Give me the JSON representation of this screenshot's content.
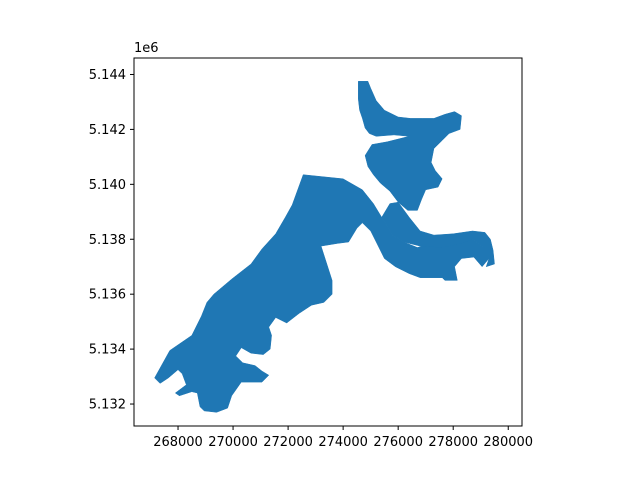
{
  "chart_data": {
    "type": "map",
    "y_offset_label": "1e6",
    "x_ticks": [
      {
        "value": 268000,
        "label": "268000"
      },
      {
        "value": 270000,
        "label": "270000"
      },
      {
        "value": 272000,
        "label": "272000"
      },
      {
        "value": 274000,
        "label": "274000"
      },
      {
        "value": 276000,
        "label": "276000"
      },
      {
        "value": 278000,
        "label": "278000"
      },
      {
        "value": 280000,
        "label": "280000"
      }
    ],
    "y_ticks": [
      {
        "value": 5132000,
        "label": "5.132"
      },
      {
        "value": 5134000,
        "label": "5.134"
      },
      {
        "value": 5136000,
        "label": "5.136"
      },
      {
        "value": 5138000,
        "label": "5.138"
      },
      {
        "value": 5140000,
        "label": "5.140"
      },
      {
        "value": 5142000,
        "label": "5.142"
      },
      {
        "value": 5144000,
        "label": "5.144"
      }
    ],
    "xlim": [
      266400,
      280500
    ],
    "ylim": [
      5131200,
      5144600
    ],
    "fill_color": "#1f77b4",
    "grid": false,
    "polygon": [
      [
        272550,
        5140350
      ],
      [
        274000,
        5140200
      ],
      [
        274700,
        5139800
      ],
      [
        275100,
        5139300
      ],
      [
        275400,
        5138800
      ],
      [
        275800,
        5138150
      ],
      [
        276200,
        5137900
      ],
      [
        276700,
        5137700
      ],
      [
        277400,
        5137900
      ],
      [
        278500,
        5138200
      ],
      [
        278700,
        5138000
      ],
      [
        279100,
        5137700
      ],
      [
        279300,
        5137300
      ],
      [
        279050,
        5137000
      ],
      [
        278750,
        5137350
      ],
      [
        278300,
        5137300
      ],
      [
        278050,
        5137000
      ],
      [
        278150,
        5136500
      ],
      [
        277700,
        5136500
      ],
      [
        277600,
        5136600
      ],
      [
        276800,
        5136600
      ],
      [
        276400,
        5136750
      ],
      [
        275900,
        5137000
      ],
      [
        275500,
        5137300
      ],
      [
        275200,
        5137900
      ],
      [
        275000,
        5138300
      ],
      [
        274700,
        5138600
      ],
      [
        274500,
        5138400
      ],
      [
        274200,
        5137900
      ],
      [
        273800,
        5137850
      ],
      [
        273200,
        5137750
      ],
      [
        273600,
        5136500
      ],
      [
        273600,
        5136000
      ],
      [
        273300,
        5135700
      ],
      [
        272850,
        5135600
      ],
      [
        272400,
        5135300
      ],
      [
        271950,
        5134950
      ],
      [
        271550,
        5135150
      ],
      [
        271300,
        5134800
      ],
      [
        271400,
        5134500
      ],
      [
        271350,
        5134000
      ],
      [
        271100,
        5133800
      ],
      [
        270650,
        5133850
      ],
      [
        270300,
        5134050
      ],
      [
        270100,
        5133750
      ],
      [
        270350,
        5133500
      ],
      [
        270800,
        5133400
      ],
      [
        271050,
        5133200
      ],
      [
        271300,
        5133050
      ],
      [
        271050,
        5132800
      ],
      [
        270300,
        5132800
      ],
      [
        269950,
        5132300
      ],
      [
        269800,
        5131850
      ],
      [
        269400,
        5131700
      ],
      [
        268950,
        5131750
      ],
      [
        268800,
        5131900
      ],
      [
        268700,
        5132400
      ],
      [
        268500,
        5132450
      ],
      [
        268050,
        5132300
      ],
      [
        267900,
        5132400
      ],
      [
        268300,
        5132700
      ],
      [
        268150,
        5133100
      ],
      [
        268000,
        5133250
      ],
      [
        267650,
        5132950
      ],
      [
        267350,
        5132750
      ],
      [
        267150,
        5132950
      ],
      [
        267700,
        5133950
      ],
      [
        268500,
        5134500
      ],
      [
        268850,
        5135200
      ],
      [
        269050,
        5135700
      ],
      [
        269300,
        5136000
      ],
      [
        269950,
        5136550
      ],
      [
        270650,
        5137100
      ],
      [
        271050,
        5137650
      ],
      [
        271550,
        5138200
      ],
      [
        271900,
        5138800
      ],
      [
        272150,
        5139250
      ]
    ],
    "north_polygon": [
      [
        274550,
        5143750
      ],
      [
        274900,
        5143750
      ],
      [
        275000,
        5143500
      ],
      [
        275200,
        5143050
      ],
      [
        275500,
        5142700
      ],
      [
        276000,
        5142450
      ],
      [
        276450,
        5142400
      ],
      [
        276900,
        5142400
      ],
      [
        277300,
        5142400
      ],
      [
        277700,
        5142550
      ],
      [
        278050,
        5142650
      ],
      [
        278300,
        5142500
      ],
      [
        278250,
        5142000
      ],
      [
        277850,
        5141850
      ],
      [
        277600,
        5141600
      ],
      [
        277300,
        5141300
      ],
      [
        277200,
        5140800
      ],
      [
        277350,
        5140500
      ],
      [
        277600,
        5140200
      ],
      [
        277450,
        5139900
      ],
      [
        277000,
        5139800
      ],
      [
        276850,
        5139450
      ],
      [
        276700,
        5139050
      ],
      [
        276350,
        5139050
      ],
      [
        276000,
        5139350
      ],
      [
        275700,
        5139750
      ],
      [
        275350,
        5140050
      ],
      [
        275100,
        5140350
      ],
      [
        274900,
        5140650
      ],
      [
        274800,
        5141050
      ],
      [
        275050,
        5141450
      ],
      [
        275600,
        5141550
      ],
      [
        276400,
        5141750
      ],
      [
        275850,
        5141800
      ],
      [
        275200,
        5141750
      ],
      [
        274950,
        5141850
      ],
      [
        274800,
        5142050
      ],
      [
        274700,
        5142400
      ],
      [
        274600,
        5142700
      ],
      [
        274550,
        5143100
      ]
    ],
    "east_tail": [
      [
        276000,
        5139350
      ],
      [
        276400,
        5138800
      ],
      [
        276800,
        5138300
      ],
      [
        277300,
        5138150
      ],
      [
        278000,
        5138200
      ],
      [
        278700,
        5138300
      ],
      [
        279150,
        5138250
      ],
      [
        279350,
        5138000
      ],
      [
        279450,
        5137600
      ],
      [
        279500,
        5137100
      ],
      [
        279200,
        5137000
      ],
      [
        279300,
        5137300
      ],
      [
        279100,
        5137700
      ],
      [
        278700,
        5138000
      ],
      [
        278300,
        5137850
      ],
      [
        277600,
        5137700
      ],
      [
        276800,
        5137750
      ],
      [
        276200,
        5137900
      ],
      [
        275800,
        5138150
      ],
      [
        275400,
        5138800
      ],
      [
        275700,
        5139300
      ]
    ]
  }
}
